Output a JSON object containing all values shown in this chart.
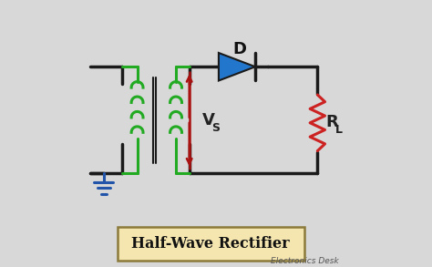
{
  "bg_color": "#d8d8d8",
  "wire_color": "#1a1a1a",
  "wire_lw": 2.5,
  "transformer_color": "#22aa22",
  "transformer_lw": 2.2,
  "diode_color": "#2277cc",
  "diode_edge": "#1a1a1a",
  "resistor_color": "#cc2222",
  "resistor_lw": 2.2,
  "vs_arrow_color": "#aa1111",
  "ground_color": "#2255aa",
  "label_D": "D",
  "label_Vs": "V",
  "label_Vs_sub": "S",
  "label_RL": "R",
  "label_RL_sub": "L",
  "title_text": "Half-Wave Rectifier",
  "title_bg": "#f5e6b0",
  "title_border": "#8b7a3a",
  "watermark": "Electronics Desk",
  "image_bg": "#d8d8d8"
}
